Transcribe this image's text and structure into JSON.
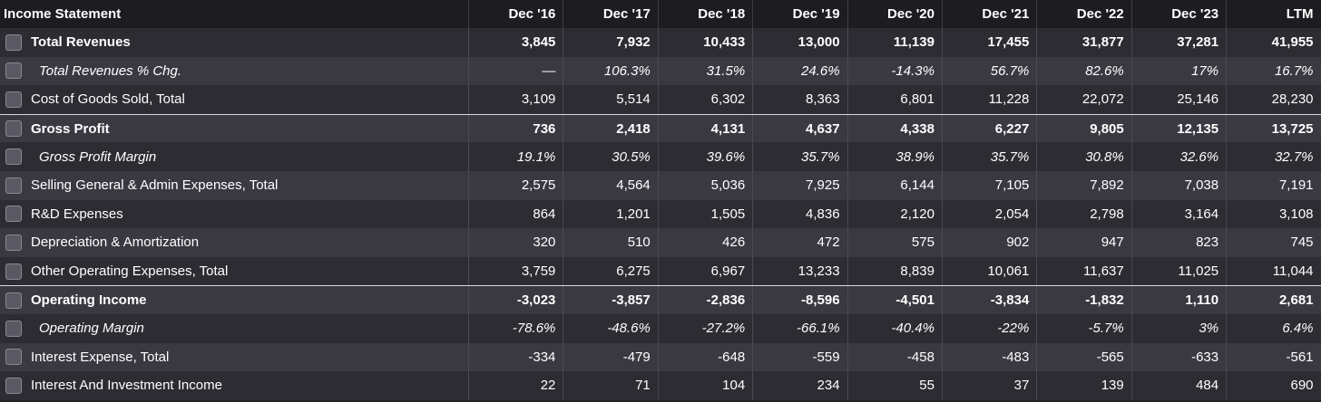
{
  "table": {
    "title": "Income Statement",
    "columns": [
      "Dec '16",
      "Dec '17",
      "Dec '18",
      "Dec '19",
      "Dec '20",
      "Dec '21",
      "Dec '22",
      "Dec '23",
      "LTM"
    ],
    "rows": [
      {
        "label": "Total Revenues",
        "style": "bold",
        "values": [
          "3,845",
          "7,932",
          "10,433",
          "13,000",
          "11,139",
          "17,455",
          "31,877",
          "37,281",
          "41,955"
        ]
      },
      {
        "label": "Total Revenues % Chg.",
        "style": "italic",
        "values": [
          "—",
          "106.3%",
          "31.5%",
          "24.6%",
          "-14.3%",
          "56.7%",
          "82.6%",
          "17%",
          "16.7%"
        ]
      },
      {
        "label": "Cost of Goods Sold, Total",
        "style": "normal",
        "values": [
          "3,109",
          "5,514",
          "6,302",
          "8,363",
          "6,801",
          "11,228",
          "22,072",
          "25,146",
          "28,230"
        ]
      },
      {
        "label": "Gross Profit",
        "style": "bold",
        "separator": true,
        "values": [
          "736",
          "2,418",
          "4,131",
          "4,637",
          "4,338",
          "6,227",
          "9,805",
          "12,135",
          "13,725"
        ]
      },
      {
        "label": "Gross Profit Margin",
        "style": "italic",
        "values": [
          "19.1%",
          "30.5%",
          "39.6%",
          "35.7%",
          "38.9%",
          "35.7%",
          "30.8%",
          "32.6%",
          "32.7%"
        ]
      },
      {
        "label": "Selling General & Admin Expenses, Total",
        "style": "normal",
        "values": [
          "2,575",
          "4,564",
          "5,036",
          "7,925",
          "6,144",
          "7,105",
          "7,892",
          "7,038",
          "7,191"
        ]
      },
      {
        "label": "R&D Expenses",
        "style": "normal",
        "values": [
          "864",
          "1,201",
          "1,505",
          "4,836",
          "2,120",
          "2,054",
          "2,798",
          "3,164",
          "3,108"
        ]
      },
      {
        "label": "Depreciation & Amortization",
        "style": "normal",
        "values": [
          "320",
          "510",
          "426",
          "472",
          "575",
          "902",
          "947",
          "823",
          "745"
        ]
      },
      {
        "label": "Other Operating Expenses, Total",
        "style": "normal",
        "values": [
          "3,759",
          "6,275",
          "6,967",
          "13,233",
          "8,839",
          "10,061",
          "11,637",
          "11,025",
          "11,044"
        ]
      },
      {
        "label": "Operating Income",
        "style": "bold",
        "separator": true,
        "values": [
          "-3,023",
          "-3,857",
          "-2,836",
          "-8,596",
          "-4,501",
          "-3,834",
          "-1,832",
          "1,110",
          "2,681"
        ]
      },
      {
        "label": "Operating Margin",
        "style": "italic",
        "values": [
          "-78.6%",
          "-48.6%",
          "-27.2%",
          "-66.1%",
          "-40.4%",
          "-22%",
          "-5.7%",
          "3%",
          "6.4%"
        ]
      },
      {
        "label": "Interest Expense, Total",
        "style": "normal",
        "values": [
          "-334",
          "-479",
          "-648",
          "-559",
          "-458",
          "-483",
          "-565",
          "-633",
          "-561"
        ]
      },
      {
        "label": "Interest And Investment Income",
        "style": "normal",
        "values": [
          "22",
          "71",
          "104",
          "234",
          "55",
          "37",
          "139",
          "484",
          "690"
        ]
      }
    ]
  }
}
